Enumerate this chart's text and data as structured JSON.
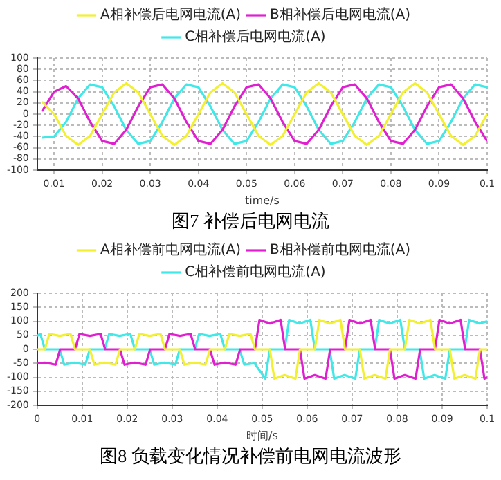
{
  "chart_data": [
    {
      "type": "line",
      "title": "图7 补偿后电网电流",
      "xlabel": "time/s",
      "xlim": [
        0.0065,
        0.1
      ],
      "xticks": [
        0.01,
        0.02,
        0.03,
        0.04,
        0.05,
        0.06,
        0.07,
        0.08,
        0.09,
        0.1
      ],
      "ylim": [
        -100,
        100
      ],
      "yticks": [
        -100,
        -80,
        -60,
        -40,
        -20,
        0,
        20,
        40,
        60,
        80,
        100
      ],
      "grid": true,
      "legend": "top",
      "marker": "none",
      "line_style": "solid",
      "x": [
        0.0075,
        0.01,
        0.0125,
        0.015,
        0.0175,
        0.02,
        0.0225,
        0.025,
        0.0275,
        0.03,
        0.0325,
        0.035,
        0.0375,
        0.04,
        0.0425,
        0.045,
        0.0475,
        0.05,
        0.0525,
        0.055,
        0.0575,
        0.06,
        0.0625,
        0.065,
        0.0675,
        0.07,
        0.0725,
        0.075,
        0.0775,
        0.08,
        0.0825,
        0.085,
        0.0875,
        0.09,
        0.0925,
        0.095,
        0.0975,
        0.1
      ],
      "series": [
        {
          "name": "A相补偿后电网电流(A)",
          "color": "#f2f030",
          "values": [
            22,
            0,
            -39,
            -55,
            -39,
            0,
            39,
            55,
            39,
            0,
            -39,
            -55,
            -39,
            0,
            39,
            55,
            39,
            0,
            -39,
            -55,
            -39,
            0,
            39,
            55,
            39,
            0,
            -39,
            -55,
            -39,
            0,
            39,
            55,
            39,
            0,
            -39,
            -55,
            -39,
            0
          ]
        },
        {
          "name": "B相补偿后电网电流(A)",
          "color": "#e020d0",
          "values": [
            5,
            40,
            50,
            28,
            -14,
            -48,
            -53,
            -28,
            14,
            48,
            53,
            28,
            -14,
            -48,
            -53,
            -28,
            14,
            48,
            53,
            28,
            -14,
            -48,
            -53,
            -28,
            14,
            48,
            53,
            28,
            -14,
            -48,
            -53,
            -28,
            14,
            48,
            53,
            28,
            -14,
            -48
          ]
        },
        {
          "name": "C相补偿后电网电流(A)",
          "color": "#40e8e8",
          "values": [
            -42,
            -40,
            -14,
            28,
            53,
            48,
            14,
            -28,
            -53,
            -48,
            -14,
            28,
            53,
            48,
            14,
            -28,
            -53,
            -48,
            -14,
            28,
            53,
            48,
            14,
            -28,
            -53,
            -48,
            -14,
            28,
            53,
            48,
            14,
            -28,
            -53,
            -48,
            -14,
            28,
            53,
            48
          ]
        }
      ]
    },
    {
      "type": "line",
      "title": "图8 负载变化情况补偿前电网电流波形",
      "xlabel": "时间/s",
      "xlim": [
        0,
        0.1
      ],
      "xticks": [
        0,
        0.01,
        0.02,
        0.03,
        0.04,
        0.05,
        0.06,
        0.07,
        0.08,
        0.09,
        0.1
      ],
      "ylim": [
        -200,
        200
      ],
      "yticks": [
        -200,
        -150,
        -100,
        -50,
        0,
        50,
        100,
        150,
        200
      ],
      "grid": true,
      "legend": "top",
      "marker": "none",
      "line_style": "solid",
      "series": [
        {
          "name": "A相补偿前电网电流(A)",
          "color": "#f2f030",
          "x": [
            0,
            0.0017,
            0.0027,
            0.005,
            0.0074,
            0.0084,
            0.0117,
            0.0127,
            0.015,
            0.0174,
            0.0184,
            0.0217,
            0.0227,
            0.025,
            0.0274,
            0.0284,
            0.0317,
            0.0327,
            0.035,
            0.0374,
            0.0384,
            0.0417,
            0.0427,
            0.045,
            0.0474,
            0.0484,
            0.0517,
            0.0527,
            0.055,
            0.0574,
            0.0584,
            0.0617,
            0.0627,
            0.065,
            0.0674,
            0.0684,
            0.0717,
            0.0727,
            0.075,
            0.0774,
            0.0784,
            0.0817,
            0.0827,
            0.085,
            0.0874,
            0.0884,
            0.0917,
            0.0927,
            0.095,
            0.0974,
            0.0984,
            0.1
          ],
          "values": [
            0,
            0,
            55,
            48,
            55,
            0,
            0,
            -55,
            -48,
            -55,
            0,
            0,
            55,
            48,
            55,
            0,
            0,
            -55,
            -48,
            -55,
            0,
            0,
            55,
            48,
            55,
            0,
            0,
            -105,
            -92,
            -105,
            0,
            0,
            105,
            92,
            105,
            0,
            0,
            -105,
            -92,
            -105,
            0,
            0,
            105,
            92,
            105,
            0,
            0,
            -105,
            -92,
            -105,
            0,
            0
          ]
        },
        {
          "name": "B相补偿前电网电流(A)",
          "color": "#e020d0",
          "x": [
            0,
            0.0017,
            0.0041,
            0.0051,
            0.0084,
            0.0094,
            0.0117,
            0.0141,
            0.0151,
            0.0184,
            0.0194,
            0.0217,
            0.0241,
            0.0251,
            0.0284,
            0.0294,
            0.0317,
            0.0341,
            0.0351,
            0.0384,
            0.0394,
            0.0417,
            0.0441,
            0.0451,
            0.0484,
            0.0494,
            0.0517,
            0.0541,
            0.0551,
            0.0584,
            0.0594,
            0.0617,
            0.0641,
            0.0651,
            0.0684,
            0.0694,
            0.0717,
            0.0741,
            0.0751,
            0.0784,
            0.0794,
            0.0817,
            0.0841,
            0.0851,
            0.0884,
            0.0894,
            0.0917,
            0.0941,
            0.0951,
            0.0984,
            0.0994,
            0.1
          ],
          "values": [
            -50,
            -48,
            -55,
            0,
            0,
            55,
            48,
            55,
            0,
            0,
            -55,
            -48,
            -55,
            0,
            0,
            55,
            48,
            55,
            0,
            0,
            -55,
            -48,
            -55,
            0,
            0,
            105,
            92,
            105,
            0,
            0,
            -105,
            -92,
            -105,
            0,
            0,
            105,
            92,
            105,
            0,
            0,
            -105,
            -92,
            -105,
            0,
            0,
            105,
            92,
            105,
            0,
            0,
            -105,
            -100
          ]
        },
        {
          "name": "C相补偿前电网电流(A)",
          "color": "#40e8e8",
          "x": [
            0,
            0.0007,
            0.0017,
            0.005,
            0.006,
            0.0083,
            0.0107,
            0.0117,
            0.015,
            0.016,
            0.0183,
            0.0207,
            0.0217,
            0.025,
            0.026,
            0.0283,
            0.0307,
            0.0317,
            0.035,
            0.036,
            0.0383,
            0.0407,
            0.0417,
            0.045,
            0.046,
            0.0483,
            0.0507,
            0.0517,
            0.055,
            0.056,
            0.0583,
            0.0607,
            0.0617,
            0.065,
            0.066,
            0.0683,
            0.0707,
            0.0717,
            0.075,
            0.076,
            0.0783,
            0.0807,
            0.0817,
            0.085,
            0.086,
            0.0883,
            0.0907,
            0.0917,
            0.095,
            0.096,
            0.0983,
            0.1
          ],
          "values": [
            48,
            55,
            0,
            0,
            -55,
            -48,
            -55,
            0,
            0,
            55,
            48,
            55,
            0,
            0,
            -55,
            -48,
            -55,
            0,
            0,
            55,
            48,
            55,
            0,
            0,
            -55,
            -50,
            -105,
            0,
            0,
            105,
            92,
            105,
            0,
            0,
            -105,
            -92,
            -105,
            0,
            0,
            105,
            92,
            105,
            0,
            0,
            -105,
            -92,
            -105,
            0,
            0,
            105,
            92,
            100
          ]
        }
      ]
    }
  ]
}
